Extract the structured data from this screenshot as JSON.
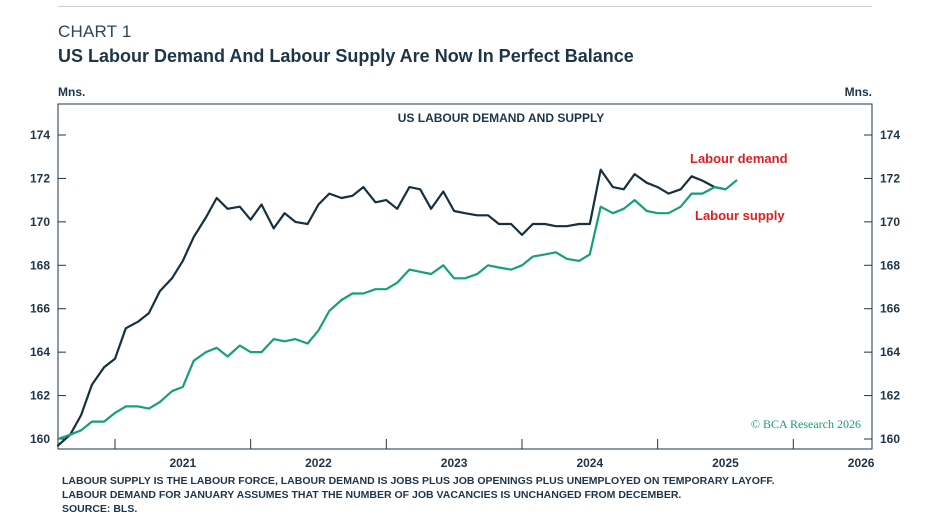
{
  "header": {
    "chart_number": "CHART 1",
    "title": "US Labour Demand And Labour Supply Are Now In Perfect Balance"
  },
  "chart_data": {
    "type": "line",
    "title": "US LABOUR DEMAND AND SUPPLY",
    "ylabel_left": "Mns.",
    "ylabel_right": "Mns.",
    "ylim": [
      160,
      174
    ],
    "yticks": [
      160,
      162,
      164,
      166,
      168,
      170,
      172,
      174
    ],
    "xlim": [
      2020.58,
      2026.58
    ],
    "year_labels": [
      "2021",
      "2022",
      "2023",
      "2024",
      "2025",
      "2026"
    ],
    "grid": false,
    "series": [
      {
        "name": "Labour demand",
        "color": "#15303f",
        "x": [
          2020.58,
          2020.67,
          2020.75,
          2020.83,
          2020.92,
          2021.0,
          2021.08,
          2021.17,
          2021.25,
          2021.33,
          2021.42,
          2021.5,
          2021.58,
          2021.67,
          2021.75,
          2021.83,
          2021.92,
          2022.0,
          2022.08,
          2022.17,
          2022.25,
          2022.33,
          2022.42,
          2022.5,
          2022.58,
          2022.67,
          2022.75,
          2022.83,
          2022.92,
          2023.0,
          2023.08,
          2023.17,
          2023.25,
          2023.33,
          2023.42,
          2023.5,
          2023.58,
          2023.67,
          2023.75,
          2023.83,
          2023.92,
          2024.0,
          2024.08,
          2024.17,
          2024.25,
          2024.33,
          2024.42,
          2024.5,
          2024.58,
          2024.67,
          2024.75,
          2024.83,
          2024.92,
          2025.0,
          2025.08,
          2025.17,
          2025.25,
          2025.33,
          2025.42,
          2025.5
        ],
        "values": [
          159.7,
          160.2,
          161.1,
          162.5,
          163.3,
          163.7,
          165.1,
          165.4,
          165.8,
          166.8,
          167.4,
          168.2,
          169.3,
          170.2,
          171.1,
          170.6,
          170.7,
          170.1,
          170.8,
          169.7,
          170.4,
          170.0,
          169.9,
          170.8,
          171.3,
          171.1,
          171.2,
          171.6,
          170.9,
          171.0,
          170.6,
          171.6,
          171.5,
          170.6,
          171.4,
          170.5,
          170.4,
          170.3,
          170.3,
          169.9,
          169.9,
          169.4,
          169.9,
          169.9,
          169.8,
          169.8,
          169.9,
          169.9,
          172.4,
          171.6,
          171.5,
          172.2,
          171.8,
          171.6,
          171.3,
          171.5,
          172.1,
          171.9,
          171.6,
          171.5
        ]
      },
      {
        "name": "Labour supply",
        "color": "#15a07a",
        "x": [
          2020.58,
          2020.67,
          2020.75,
          2020.83,
          2020.92,
          2021.0,
          2021.08,
          2021.17,
          2021.25,
          2021.33,
          2021.42,
          2021.5,
          2021.58,
          2021.67,
          2021.75,
          2021.83,
          2021.92,
          2022.0,
          2022.08,
          2022.17,
          2022.25,
          2022.33,
          2022.42,
          2022.5,
          2022.58,
          2022.67,
          2022.75,
          2022.83,
          2022.92,
          2023.0,
          2023.08,
          2023.17,
          2023.25,
          2023.33,
          2023.42,
          2023.5,
          2023.58,
          2023.67,
          2023.75,
          2023.83,
          2023.92,
          2024.0,
          2024.08,
          2024.17,
          2024.25,
          2024.33,
          2024.42,
          2024.5,
          2024.58,
          2024.67,
          2024.75,
          2024.83,
          2024.92,
          2025.0,
          2025.08,
          2025.17,
          2025.25,
          2025.33,
          2025.42,
          2025.5,
          2025.58
        ],
        "values": [
          160.0,
          160.2,
          160.4,
          160.8,
          160.8,
          161.2,
          161.5,
          161.5,
          161.4,
          161.7,
          162.2,
          162.4,
          163.6,
          164.0,
          164.2,
          163.8,
          164.3,
          164.0,
          164.0,
          164.6,
          164.5,
          164.6,
          164.4,
          165.0,
          165.9,
          166.4,
          166.7,
          166.7,
          166.9,
          166.9,
          167.2,
          167.8,
          167.7,
          167.6,
          168.0,
          167.4,
          167.4,
          167.6,
          168.0,
          167.9,
          167.8,
          168.0,
          168.4,
          168.5,
          168.6,
          168.3,
          168.2,
          168.5,
          170.7,
          170.4,
          170.6,
          171.0,
          170.5,
          170.4,
          170.4,
          170.7,
          171.3,
          171.3,
          171.6,
          171.5,
          171.9
        ]
      }
    ],
    "legend": "inline labels near series ends",
    "annotations": {
      "demand_label": "Labour demand",
      "supply_label": "Labour supply",
      "demand_label_color": "#e01e1e",
      "supply_label_color": "#e01e1e",
      "watermark": "© BCA Research 2026",
      "watermark_color": "#15a07a"
    }
  },
  "footnotes": [
    "LABOUR SUPPLY IS THE LABOUR FORCE, LABOUR DEMAND IS JOBS PLUS JOB OPENINGS PLUS UNEMPLOYED ON TEMPORARY LAYOFF.",
    "LABOUR DEMAND FOR JANUARY ASSUMES THAT THE NUMBER OF JOB VACANCIES IS UNCHANGED FROM DECEMBER.",
    "SOURCE: BLS."
  ]
}
